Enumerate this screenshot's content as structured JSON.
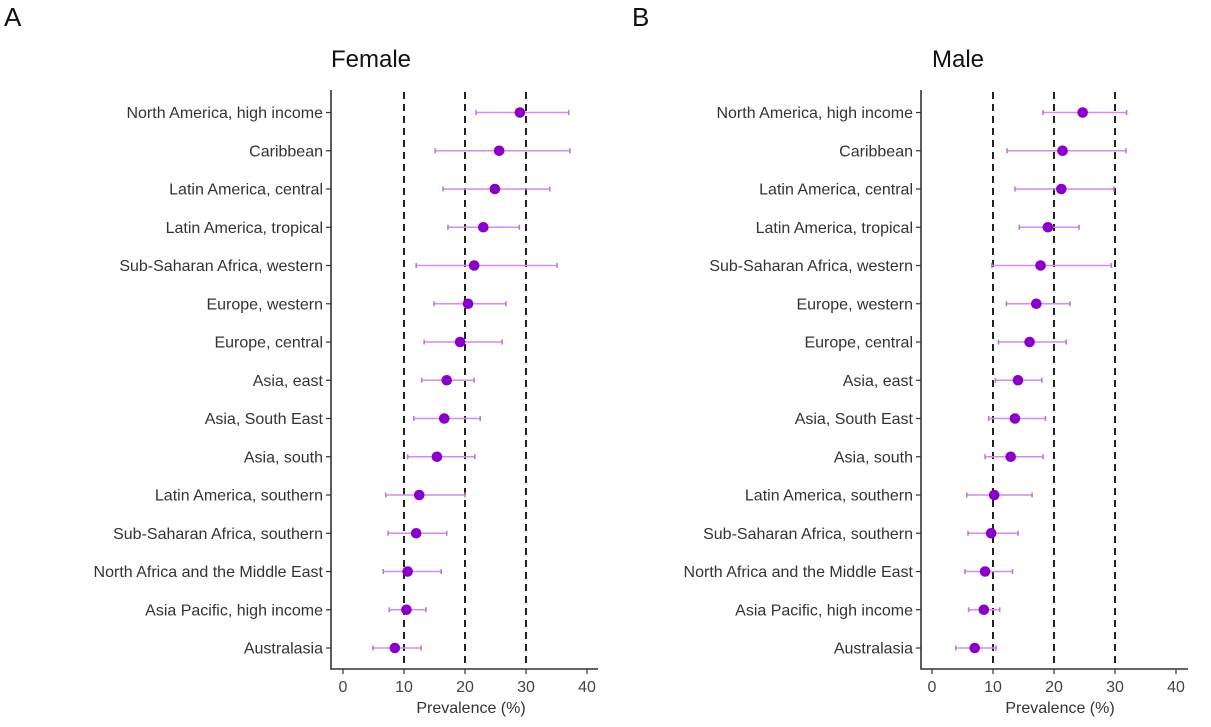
{
  "chart_data": [
    {
      "type": "forest",
      "panel_letter": "A",
      "title": "Female",
      "xlabel": "Prevalence (%)",
      "ylabel": "",
      "xlim": [
        0,
        40
      ],
      "xticks": [
        "0",
        "10",
        "20",
        "30",
        "40"
      ],
      "reference_lines": [
        10,
        20,
        30
      ],
      "grid": false,
      "colors": {
        "point": "#8b00c9",
        "interval": "#cf8ee9"
      },
      "categories": [
        "North America, high income",
        "Caribbean",
        "Latin America, central",
        "Latin America, tropical",
        "Sub-Saharan Africa, western",
        "Europe, western",
        "Europe, central",
        "Asia, east",
        "Asia, South East",
        "Asia, south",
        "Latin America, southern",
        "Sub-Saharan Africa, southern",
        "North Africa and the Middle East",
        "Asia Pacific, high income",
        "Australasia"
      ],
      "values": [
        29.0,
        25.6,
        24.9,
        23.0,
        21.5,
        20.5,
        19.2,
        17.0,
        16.6,
        15.4,
        12.5,
        12.0,
        10.6,
        10.4,
        8.5
      ],
      "lower": [
        21.8,
        15.1,
        16.4,
        17.2,
        12.0,
        14.9,
        13.3,
        12.9,
        11.6,
        10.6,
        7.0,
        7.4,
        6.6,
        7.6,
        4.9
      ],
      "upper": [
        37.0,
        37.2,
        33.9,
        28.9,
        35.1,
        26.7,
        26.1,
        21.5,
        22.5,
        21.6,
        20.0,
        17.0,
        16.1,
        13.6,
        12.8
      ]
    },
    {
      "type": "forest",
      "panel_letter": "B",
      "title": "Male",
      "xlabel": "Prevalence (%)",
      "ylabel": "",
      "xlim": [
        0,
        40
      ],
      "xticks": [
        "0",
        "10",
        "20",
        "30",
        "40"
      ],
      "reference_lines": [
        10,
        20,
        30
      ],
      "grid": false,
      "colors": {
        "point": "#8b00c9",
        "interval": "#cf8ee9"
      },
      "categories": [
        "North America, high income",
        "Caribbean",
        "Latin America, central",
        "Latin America, tropical",
        "Sub-Saharan Africa, western",
        "Europe, western",
        "Europe, central",
        "Asia, east",
        "Asia, South East",
        "Asia, south",
        "Latin America, southern",
        "Sub-Saharan Africa, southern",
        "North Africa and the Middle East",
        "Asia Pacific, high income",
        "Australasia"
      ],
      "values": [
        24.7,
        21.4,
        21.2,
        19.0,
        17.8,
        17.1,
        16.0,
        14.1,
        13.6,
        12.9,
        10.2,
        9.7,
        8.7,
        8.5,
        7.0
      ],
      "lower": [
        18.2,
        12.3,
        13.6,
        14.3,
        9.8,
        12.2,
        10.9,
        10.4,
        9.3,
        8.7,
        5.7,
        5.9,
        5.4,
        6.0,
        3.9
      ],
      "upper": [
        31.9,
        31.8,
        29.8,
        24.1,
        29.4,
        22.6,
        22.0,
        18.0,
        18.6,
        18.2,
        16.4,
        14.1,
        13.2,
        11.1,
        10.5
      ]
    }
  ]
}
